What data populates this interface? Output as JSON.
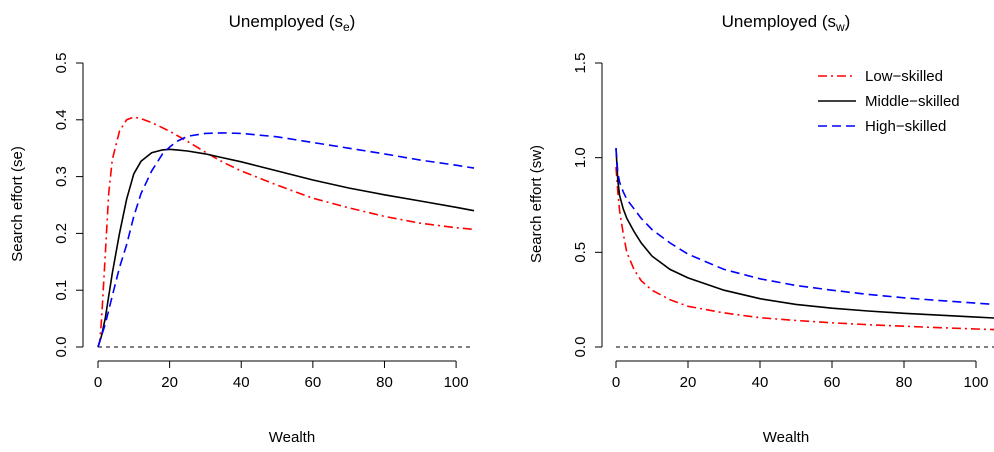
{
  "chart_data": [
    {
      "type": "line",
      "title": "Unemployed (s",
      "title_sub": "e",
      "title_close": ")",
      "xlabel": "Wealth",
      "ylabel": "Search effort (se)",
      "xlim": [
        0,
        105
      ],
      "ylim": [
        0,
        0.5
      ],
      "xticks": [
        0,
        20,
        40,
        60,
        80,
        100
      ],
      "yticks": [
        0.0,
        0.1,
        0.2,
        0.3,
        0.4,
        0.5
      ],
      "ytick_labels": [
        "0.0",
        "0.1",
        "0.2",
        "0.3",
        "0.4",
        "0.5"
      ],
      "reference_line": 0,
      "series": [
        {
          "color": "#ff0000",
          "dash": "dashdot",
          "x": [
            0,
            0.5,
            1,
            2,
            3,
            4,
            6,
            8,
            10,
            12,
            15,
            20,
            25,
            30,
            35,
            40,
            50,
            60,
            70,
            80,
            90,
            100,
            105
          ],
          "y": [
            0,
            0.01,
            0.05,
            0.16,
            0.27,
            0.33,
            0.38,
            0.4,
            0.405,
            0.402,
            0.395,
            0.38,
            0.362,
            0.343,
            0.325,
            0.31,
            0.285,
            0.262,
            0.245,
            0.23,
            0.218,
            0.21,
            0.207
          ]
        },
        {
          "color": "#000000",
          "dash": "solid",
          "x": [
            0,
            1,
            2,
            4,
            6,
            8,
            10,
            12,
            15,
            18,
            20,
            22,
            25,
            30,
            35,
            40,
            50,
            60,
            70,
            80,
            90,
            100,
            105
          ],
          "y": [
            0,
            0.02,
            0.05,
            0.13,
            0.2,
            0.26,
            0.305,
            0.327,
            0.342,
            0.347,
            0.348,
            0.347,
            0.345,
            0.34,
            0.333,
            0.326,
            0.31,
            0.294,
            0.28,
            0.268,
            0.257,
            0.246,
            0.24
          ]
        },
        {
          "color": "#0000ff",
          "dash": "dashed",
          "x": [
            0,
            1,
            2,
            4,
            6,
            8,
            10,
            12,
            15,
            18,
            20,
            22,
            25,
            30,
            35,
            40,
            50,
            60,
            70,
            80,
            90,
            100,
            105
          ],
          "y": [
            0,
            0.02,
            0.04,
            0.09,
            0.14,
            0.18,
            0.23,
            0.27,
            0.31,
            0.34,
            0.352,
            0.362,
            0.371,
            0.376,
            0.377,
            0.376,
            0.37,
            0.36,
            0.35,
            0.34,
            0.329,
            0.32,
            0.315
          ]
        }
      ]
    },
    {
      "type": "line",
      "title": "Unemployed (s",
      "title_sub": "w",
      "title_close": ")",
      "xlabel": "Wealth",
      "ylabel": "Search effort (sw)",
      "xlim": [
        0,
        105
      ],
      "ylim": [
        0,
        1.5
      ],
      "xticks": [
        0,
        20,
        40,
        60,
        80,
        100
      ],
      "yticks": [
        0.0,
        0.5,
        1.0,
        1.5
      ],
      "ytick_labels": [
        "0.0",
        "0.5",
        "1.0",
        "1.5"
      ],
      "reference_line": 0,
      "legend_position": "top-right",
      "series": [
        {
          "name": "Low−skilled",
          "color": "#ff0000",
          "dash": "dashdot",
          "x": [
            0,
            0.5,
            1,
            2,
            3,
            5,
            7,
            10,
            15,
            20,
            30,
            40,
            50,
            60,
            70,
            80,
            90,
            100,
            105
          ],
          "y": [
            0.95,
            0.82,
            0.72,
            0.6,
            0.5,
            0.41,
            0.35,
            0.3,
            0.25,
            0.215,
            0.18,
            0.155,
            0.14,
            0.128,
            0.118,
            0.11,
            0.102,
            0.095,
            0.092
          ]
        },
        {
          "name": "Middle−skilled",
          "color": "#000000",
          "dash": "solid",
          "x": [
            0,
            0.5,
            1,
            2,
            3,
            5,
            7,
            10,
            15,
            20,
            30,
            40,
            50,
            60,
            70,
            80,
            90,
            100,
            105
          ],
          "y": [
            1.05,
            0.88,
            0.8,
            0.73,
            0.68,
            0.61,
            0.55,
            0.48,
            0.41,
            0.365,
            0.3,
            0.255,
            0.225,
            0.205,
            0.19,
            0.178,
            0.168,
            0.158,
            0.153
          ]
        },
        {
          "name": "High−skilled",
          "color": "#0000ff",
          "dash": "dashed",
          "x": [
            0,
            0.5,
            1,
            2,
            3,
            5,
            7,
            10,
            15,
            20,
            30,
            40,
            50,
            60,
            70,
            80,
            90,
            100,
            105
          ],
          "y": [
            1.05,
            0.92,
            0.87,
            0.82,
            0.78,
            0.73,
            0.68,
            0.62,
            0.55,
            0.49,
            0.41,
            0.36,
            0.325,
            0.3,
            0.278,
            0.26,
            0.245,
            0.232,
            0.225
          ]
        }
      ]
    }
  ]
}
